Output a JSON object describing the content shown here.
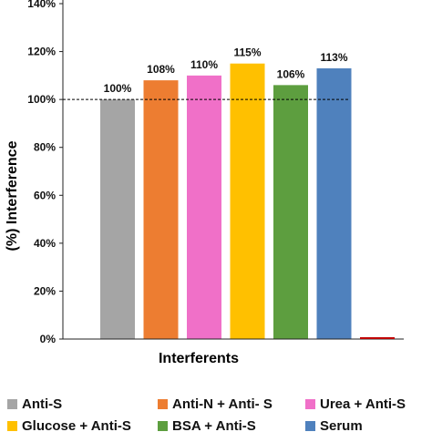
{
  "chart_data": {
    "type": "bar",
    "title": "",
    "xlabel": "Interferents",
    "ylabel": "(%) Interference",
    "ylim": [
      0,
      140
    ],
    "y_ticks": [
      "0%",
      "20%",
      "40%",
      "60%",
      "80%",
      "100%",
      "120%",
      "140%"
    ],
    "reference_line": 100,
    "grid": false,
    "legend_position": "bottom",
    "categories": [
      "Anti-S",
      "Anti-N + Anti- S",
      "Urea + Anti-S",
      "Glucose + Anti-S",
      "BSA + Anti-S",
      "Serum"
    ],
    "values": [
      100,
      108,
      110,
      115,
      106,
      113
    ],
    "data_labels": [
      "100%",
      "108%",
      "110%",
      "115%",
      "106%",
      "113%"
    ],
    "colors": [
      "#a5a5a5",
      "#ed7d31",
      "#f070c8",
      "#ffc000",
      "#5d9e3f",
      "#4f81bd"
    ],
    "extra_marker_color": "#c00000"
  }
}
